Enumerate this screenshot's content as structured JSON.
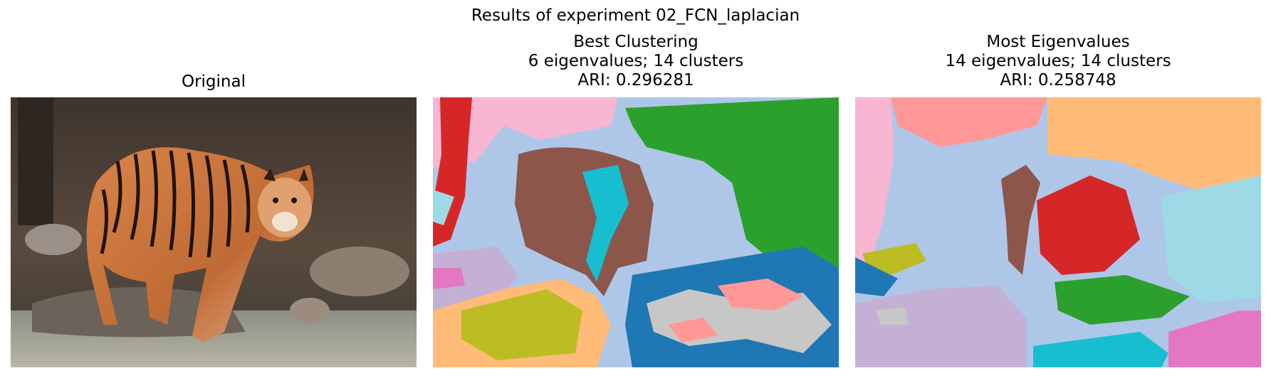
{
  "figure": {
    "title": "Results of experiment 02_FCN_laplacian",
    "panels": [
      {
        "lines": [
          "Original"
        ],
        "content": "photo-tiger"
      },
      {
        "lines": [
          "Best Clustering",
          "6 eigenvalues; 14 clusters",
          "ARI: 0.296281"
        ],
        "content": "segmentation"
      },
      {
        "lines": [
          "Most Eigenvalues",
          "14 eigenvalues; 14 clusters",
          "ARI: 0.258748"
        ],
        "content": "segmentation"
      }
    ]
  },
  "palette": {
    "blue": "#1f77b4",
    "light_blue": "#aec7e8",
    "orange": "#ffbb78",
    "green": "#2ca02c",
    "red": "#d62728",
    "pink_light": "#ff9896",
    "brown": "#8c564b",
    "lavender": "#c5b0d5",
    "pink": "#e377c2",
    "pale_pink": "#f7b6d2",
    "olive": "#bcbd22",
    "cyan": "#17becf",
    "pale_cyan": "#9edae5",
    "grey": "#c7c7c7"
  }
}
